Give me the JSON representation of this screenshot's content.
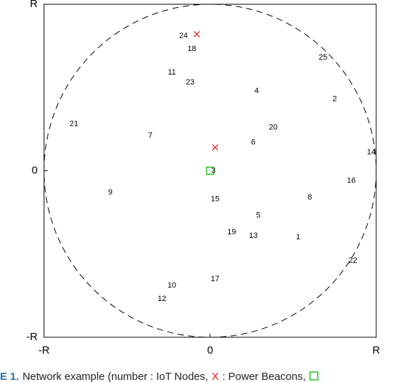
{
  "chart_data": {
    "type": "scatter",
    "xlim": [
      -1,
      1
    ],
    "ylim": [
      -1,
      1
    ],
    "xticks": [
      {
        "value": -1,
        "label": "-R"
      },
      0,
      {
        "value": 1,
        "label": "R"
      }
    ],
    "yticks": [
      {
        "value": -1,
        "label": "-R"
      },
      0,
      {
        "value": 1,
        "label": "R"
      }
    ],
    "nodes": {
      "color": "#000000",
      "labels": [
        "24",
        "18",
        "25",
        "11",
        "23",
        "4",
        "2",
        "21",
        "20",
        "7",
        "6",
        "14",
        "3",
        "16",
        "9",
        "8",
        "15",
        "5",
        "19",
        "13",
        "1",
        "22",
        "17",
        "10",
        "12"
      ],
      "x": [
        -0.16,
        -0.11,
        0.68,
        -0.23,
        -0.12,
        0.28,
        0.75,
        -0.82,
        0.38,
        -0.36,
        0.26,
        0.97,
        0.02,
        0.85,
        -0.6,
        0.6,
        0.03,
        0.29,
        0.13,
        0.26,
        0.53,
        0.86,
        0.03,
        -0.23,
        -0.29
      ],
      "values": [
        0.81,
        0.73,
        0.68,
        0.59,
        0.53,
        0.48,
        0.43,
        0.28,
        0.26,
        0.21,
        0.17,
        0.11,
        0.0,
        -0.06,
        -0.13,
        -0.16,
        -0.17,
        -0.27,
        -0.37,
        -0.39,
        -0.4,
        -0.54,
        -0.65,
        -0.69,
        -0.77
      ]
    },
    "beacons": {
      "color": "#e8141e",
      "x": [
        -0.08,
        0.03
      ],
      "values": [
        0.82,
        0.14
      ]
    },
    "base": {
      "color": "#22c322",
      "x": [
        0
      ],
      "values": [
        0
      ]
    },
    "caption": [
      "E 1.",
      "Network example (number : IoT Nodes,",
      "X",
      ": Power Beacons,"
    ]
  }
}
